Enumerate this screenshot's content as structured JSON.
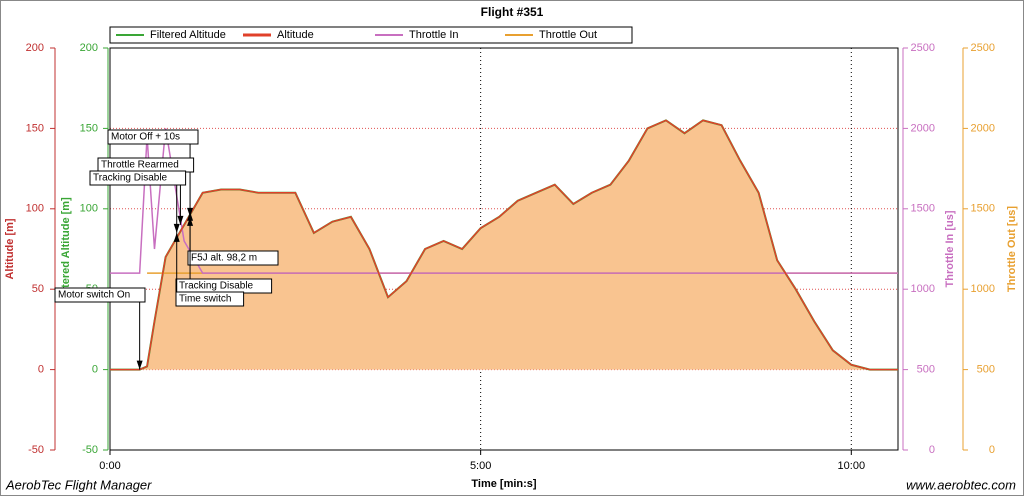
{
  "chart_data": {
    "type": "line",
    "title": "Flight #351",
    "xlabel": "Time [min:s]",
    "ylabels": [
      "Altitude [m]",
      "Filtered Altitude [m]"
    ],
    "y2labels": [
      "Throttle In [us]",
      "Throttle Out [us]"
    ],
    "footer_left": "AerobTec Flight Manager",
    "footer_right": "www.aerobtec.com",
    "x": [
      0,
      0.25,
      0.4,
      0.5,
      0.6,
      0.75,
      1.0,
      1.25,
      1.5,
      1.75,
      2.0,
      2.25,
      2.5,
      2.75,
      3.0,
      3.25,
      3.5,
      3.75,
      4.0,
      4.25,
      4.5,
      4.75,
      5.0,
      5.25,
      5.5,
      5.75,
      6.0,
      6.25,
      6.5,
      6.75,
      7.0,
      7.25,
      7.5,
      7.75,
      8.0,
      8.25,
      8.5,
      8.75,
      9.0,
      9.25,
      9.5,
      9.75,
      10.0,
      10.25,
      10.5,
      10.63
    ],
    "xlim": [
      0,
      10.63
    ],
    "xticks": [
      {
        "value": 0,
        "label": "0:00"
      },
      {
        "value": 5,
        "label": "5:00"
      },
      {
        "value": 10,
        "label": "10:00"
      }
    ],
    "ylim": [
      -50,
      200
    ],
    "yticks": [
      -50,
      0,
      50,
      100,
      150,
      200
    ],
    "y2lim": [
      0,
      2500
    ],
    "y2ticks": [
      0,
      500,
      1000,
      1500,
      2000,
      2500
    ],
    "grid": true,
    "series": [
      {
        "name": "Filtered Altitude",
        "color": "#3aa636",
        "fill": "#f9c490",
        "values": [
          0,
          0,
          0,
          2,
          30,
          70,
          90,
          110,
          112,
          112,
          110,
          110,
          110,
          85,
          92,
          95,
          75,
          45,
          55,
          75,
          80,
          75,
          88,
          95,
          105,
          110,
          115,
          103,
          110,
          115,
          130,
          150,
          155,
          147,
          155,
          152,
          130,
          110,
          68,
          50,
          30,
          12,
          3,
          0,
          0,
          0
        ]
      },
      {
        "name": "Altitude",
        "color": "#e0402a",
        "values": [
          0,
          0,
          0,
          2,
          30,
          70,
          90,
          110,
          112,
          112,
          110,
          110,
          110,
          85,
          92,
          95,
          75,
          45,
          55,
          75,
          80,
          75,
          88,
          95,
          105,
          110,
          115,
          103,
          110,
          115,
          130,
          150,
          155,
          147,
          155,
          152,
          130,
          110,
          68,
          50,
          30,
          12,
          3,
          0,
          0,
          0
        ]
      },
      {
        "name": "Throttle In",
        "color": "#c86fc0",
        "axis": "y2",
        "values": [
          1100,
          1100,
          1100,
          1950,
          1250,
          2000,
          1300,
          1100,
          1100,
          1100,
          1100,
          1100,
          1100,
          1100,
          1100,
          1100,
          1100,
          1100,
          1100,
          1100,
          1100,
          1100,
          1100,
          1100,
          1100,
          1100,
          1100,
          1100,
          1100,
          1100,
          1100,
          1100,
          1100,
          1100,
          1100,
          1100,
          1100,
          1100,
          1100,
          1100,
          1100,
          1100,
          1100,
          1100,
          1100,
          1100
        ]
      },
      {
        "name": "Throttle Out",
        "color": "#e8a030",
        "axis": "y2",
        "values": [
          null,
          null,
          null,
          1100,
          1100,
          1100,
          1100,
          1100,
          1100,
          1100,
          1100,
          1100,
          1100,
          1100,
          1100,
          1100,
          1100,
          1100,
          1100,
          1100,
          1100,
          1100,
          1100,
          1100,
          1100,
          1100,
          1100,
          1100,
          1100,
          1100,
          1100,
          1100,
          1100,
          1100,
          1100,
          1100,
          1100,
          1100,
          1100,
          1100,
          1100,
          1100,
          1100,
          1100,
          1100,
          1100
        ]
      }
    ],
    "annotations": [
      {
        "text": "Motor switch On",
        "x": 0.4,
        "y": 0
      },
      {
        "text": "Motor Off + 10s",
        "x": 1.08,
        "y": 95
      },
      {
        "text": "Throttle Rearmed",
        "x": 0.95,
        "y": 90
      },
      {
        "text": "Tracking Disable",
        "x": 0.9,
        "y": 85
      },
      {
        "text": "F5J alt. 98,2 m",
        "x": 1.08,
        "y": 98.2
      },
      {
        "text": "Tracking Disable",
        "x": 1.08,
        "y": 95
      },
      {
        "text": "Time switch",
        "x": 0.9,
        "y": 85
      }
    ]
  }
}
